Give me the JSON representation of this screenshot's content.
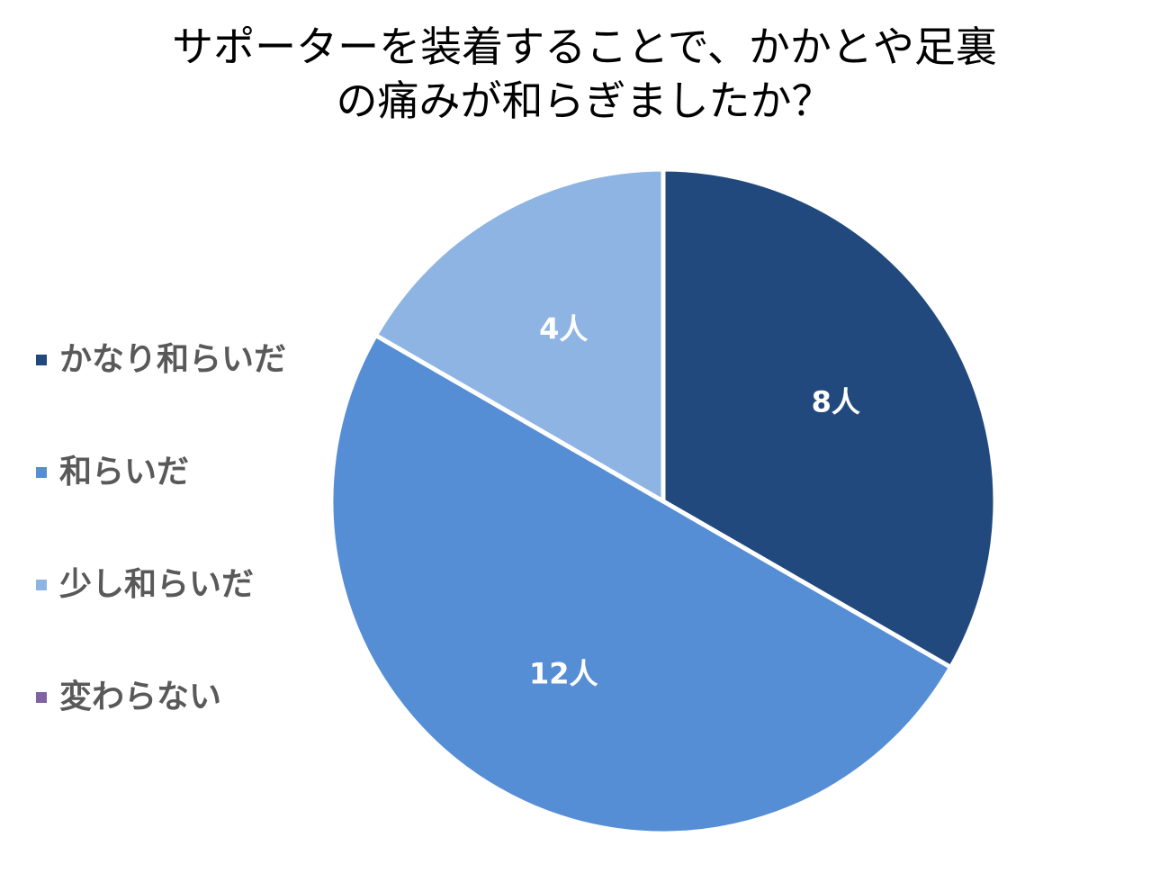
{
  "chart_data": {
    "type": "pie",
    "title_lines": [
      "サポーターを装着することで、かかとや足裏",
      "の痛みが和らぎましたか？"
    ],
    "categories": [
      "かなり和らいだ",
      "和らいだ",
      "少し和らいだ",
      "変わらない"
    ],
    "values": [
      8,
      12,
      4,
      0
    ],
    "data_labels": [
      "8人",
      "12人",
      "4人",
      ""
    ],
    "colors": [
      "#22497D",
      "#558ED5",
      "#8EB4E3",
      "#8064A2"
    ],
    "start_angle_deg": 0,
    "direction": "clockwise",
    "legend_position": "left",
    "slice_border_color": "#ffffff"
  }
}
